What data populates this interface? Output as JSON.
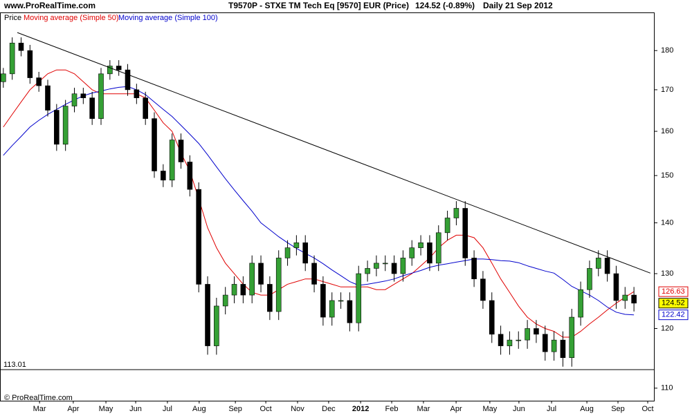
{
  "header": {
    "site": "www.ProRealTime.com",
    "instrument": "T9570P - STXE TM Tech Eq [9570] EUR (Price)",
    "quote": "124.52 (-0.89%)",
    "period": "Daily  21 Sep 2012"
  },
  "footer": "© ProRealTime.com",
  "chart_data": {
    "type": "candlestick",
    "price_name": "Price",
    "up_color": "#35a035",
    "down_color": "#000000",
    "x": [
      0,
      4,
      8,
      12,
      16,
      20,
      24,
      28,
      32,
      36,
      40,
      44,
      48,
      52,
      56,
      60,
      64,
      68,
      72,
      76,
      80,
      84,
      88,
      92,
      96,
      100,
      104,
      108,
      112,
      116,
      120,
      124,
      128,
      132,
      136,
      140,
      144,
      148,
      152,
      156,
      160,
      164,
      168,
      172,
      176,
      180,
      184,
      188,
      192,
      196,
      200,
      204,
      208,
      212,
      216,
      220,
      224,
      228,
      232,
      236,
      240,
      244,
      248,
      252,
      256,
      260,
      264,
      268,
      272,
      276,
      280,
      284
    ],
    "open": [
      172,
      174,
      182,
      180,
      173,
      171,
      165,
      157,
      166,
      169,
      168,
      163,
      174,
      176,
      175,
      170,
      168,
      163,
      151,
      149,
      158,
      153,
      147,
      128,
      117,
      124,
      126,
      128,
      126,
      132,
      128,
      123,
      133,
      135,
      136,
      132,
      128,
      122,
      125,
      125,
      121,
      130,
      131,
      132,
      132,
      130,
      133,
      135,
      136,
      132,
      138,
      141,
      143,
      133,
      129,
      125,
      119,
      117,
      118,
      118,
      120,
      119,
      116,
      118,
      115,
      122,
      127,
      131,
      133,
      130,
      125,
      126
    ],
    "high": [
      175.5,
      183.5,
      183.5,
      181.5,
      174.5,
      172.5,
      166.5,
      167.5,
      170.5,
      170.5,
      169.5,
      175.5,
      177.5,
      177.5,
      176.5,
      171.5,
      169.5,
      164.5,
      152.5,
      159.5,
      159.5,
      154.5,
      148.5,
      129.5,
      125.5,
      127.5,
      129.5,
      129.5,
      133.5,
      133.5,
      129.5,
      134.5,
      136.5,
      137.5,
      137.5,
      133.5,
      129.5,
      126.5,
      126.5,
      126.5,
      131.5,
      132.5,
      133.5,
      133.5,
      133.5,
      134.5,
      136.5,
      137.5,
      137.5,
      139.5,
      142.5,
      144.5,
      144.5,
      134.5,
      130.5,
      126.5,
      120.5,
      119.5,
      119.5,
      121.5,
      121.5,
      120.5,
      119.5,
      119.5,
      123.5,
      128.5,
      132.5,
      134.5,
      134.5,
      131.5,
      127.5,
      127.5
    ],
    "low": [
      170.5,
      172.5,
      178.5,
      171.5,
      169.5,
      163.5,
      155.5,
      155.5,
      164.5,
      166.5,
      161.5,
      161.5,
      172.5,
      173.5,
      168.5,
      166.5,
      161.5,
      149.5,
      147.5,
      147.5,
      151.5,
      145.5,
      126.5,
      115.5,
      115.5,
      122.5,
      124.5,
      124.5,
      124.5,
      126.5,
      121.5,
      121.5,
      131.5,
      133.5,
      130.5,
      126.5,
      120.5,
      120.5,
      123.5,
      119.5,
      119.5,
      128.5,
      129.5,
      130.5,
      128.5,
      128.5,
      131.5,
      133.5,
      130.5,
      130.5,
      136.5,
      139.5,
      131.5,
      127.5,
      123.5,
      117.5,
      115.5,
      115.5,
      116.5,
      116.5,
      117.5,
      114.5,
      114.5,
      113.5,
      113.5,
      120.5,
      125.5,
      129.5,
      128.5,
      123.5,
      123.5,
      123.02
    ],
    "close": [
      174,
      182,
      180,
      173,
      171,
      165,
      157,
      166,
      169,
      168,
      163,
      174,
      176,
      175,
      170,
      168,
      163,
      151,
      149,
      158,
      153,
      147,
      128,
      117,
      124,
      126,
      128,
      126,
      132,
      128,
      123,
      133,
      135,
      136,
      132,
      128,
      122,
      125,
      125,
      121,
      130,
      131,
      132,
      132,
      130,
      133,
      135,
      136,
      132,
      138,
      141,
      143,
      133,
      129,
      125,
      119,
      117,
      118,
      118,
      120,
      119,
      116,
      118,
      115,
      122,
      127,
      131,
      133,
      130,
      125,
      126,
      124.52
    ],
    "series": [
      {
        "name": "Moving average (Simple 50)",
        "color": "#e00000",
        "values": [
          161,
          164,
          167,
          170,
          172,
          174,
          175,
          175,
          174,
          172,
          170,
          169,
          169,
          169,
          169,
          169,
          168,
          165,
          162,
          160,
          155,
          151,
          145,
          139,
          135,
          132,
          130,
          128,
          126.5,
          126,
          126,
          127,
          128,
          128.5,
          129,
          129,
          128.5,
          128,
          127.5,
          127.5,
          127.5,
          127.5,
          127,
          127,
          128,
          129,
          130,
          131.5,
          133,
          135,
          136.5,
          137.5,
          137.5,
          137,
          135,
          132,
          129,
          126.5,
          124,
          122,
          120.8,
          120,
          119.5,
          118.5,
          118.5,
          119.5,
          120.8,
          122,
          123.3,
          124.5,
          125.6,
          126.63
        ]
      },
      {
        "name": "Moving average (Simple 100)",
        "color": "#0000cc",
        "values": [
          154.5,
          156.7,
          158.8,
          161,
          162.6,
          164,
          165.2,
          166.4,
          167.5,
          168.5,
          169.2,
          169.7,
          170.2,
          170.6,
          170.8,
          170,
          168.8,
          167,
          165.2,
          163.5,
          161.4,
          159.3,
          157.2,
          154.6,
          151.9,
          149.3,
          146.9,
          144.6,
          142.4,
          140,
          138.6,
          137.2,
          136,
          134.9,
          133.9,
          133,
          131.9,
          130.7,
          129.6,
          128.5,
          127.8,
          128,
          128.3,
          128.6,
          129,
          129.6,
          130.1,
          130.6,
          131.2,
          131.6,
          131.9,
          132.2,
          132.5,
          132.8,
          132.8,
          132.7,
          132.5,
          132.4,
          132.1,
          131.5,
          131,
          130.5,
          130.1,
          128.9,
          127.6,
          126.8,
          126,
          125,
          123.8,
          122.9,
          122.5,
          122.42
        ]
      }
    ],
    "trendline": {
      "x": [
        6.3,
        291.4
      ],
      "y": [
        184.8,
        130.1
      ],
      "color": "#000000"
    },
    "hline": {
      "value": 113.01,
      "color": "#000000"
    },
    "xlim": [
      -1.5,
      293
    ],
    "xticks": [
      {
        "value": 16.3,
        "label": "Mar"
      },
      {
        "value": 31.5,
        "label": "Apr"
      },
      {
        "value": 46.2,
        "label": "May"
      },
      {
        "value": 59.6,
        "label": "Jun"
      },
      {
        "value": 73.9,
        "label": "Jul"
      },
      {
        "value": 88.2,
        "label": "Aug"
      },
      {
        "value": 104.5,
        "label": "Sep"
      },
      {
        "value": 118.2,
        "label": "Oct"
      },
      {
        "value": 132.5,
        "label": "Nov"
      },
      {
        "value": 146.5,
        "label": "Dec"
      },
      {
        "value": 160.9,
        "label": "2012"
      },
      {
        "value": 174.9,
        "label": "Feb"
      },
      {
        "value": 189.2,
        "label": "Mar"
      },
      {
        "value": 203.9,
        "label": "Apr"
      },
      {
        "value": 219.1,
        "label": "May"
      },
      {
        "value": 232.2,
        "label": "Jun"
      },
      {
        "value": 246.9,
        "label": "Jul"
      },
      {
        "value": 262.8,
        "label": "Aug"
      },
      {
        "value": 276.8,
        "label": "Sep"
      },
      {
        "value": 290.2,
        "label": "Oct"
      }
    ],
    "ylim": [
      108,
      190.3
    ],
    "yticks": [
      110,
      120,
      130,
      140,
      150,
      160,
      170,
      180
    ],
    "log_scale": true
  }
}
